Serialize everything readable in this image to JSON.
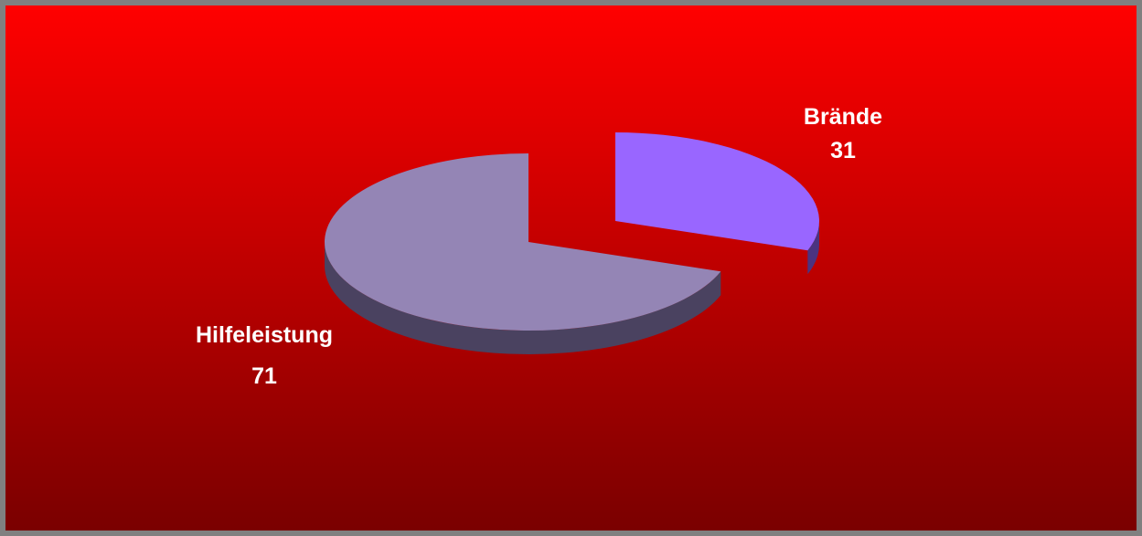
{
  "chart_data": {
    "type": "pie",
    "style": "3d-exploded",
    "title": "",
    "slices": [
      {
        "label": "Brände",
        "value": 31,
        "color": "#9966ff",
        "side_color": "#4b3380"
      },
      {
        "label": "Hilfeleistung",
        "value": 71,
        "color": "#9485b5",
        "side_color": "#4a4260"
      }
    ],
    "background": {
      "top": "#ff0000",
      "bottom": "#7a0000"
    },
    "frame_color": "#808080"
  }
}
